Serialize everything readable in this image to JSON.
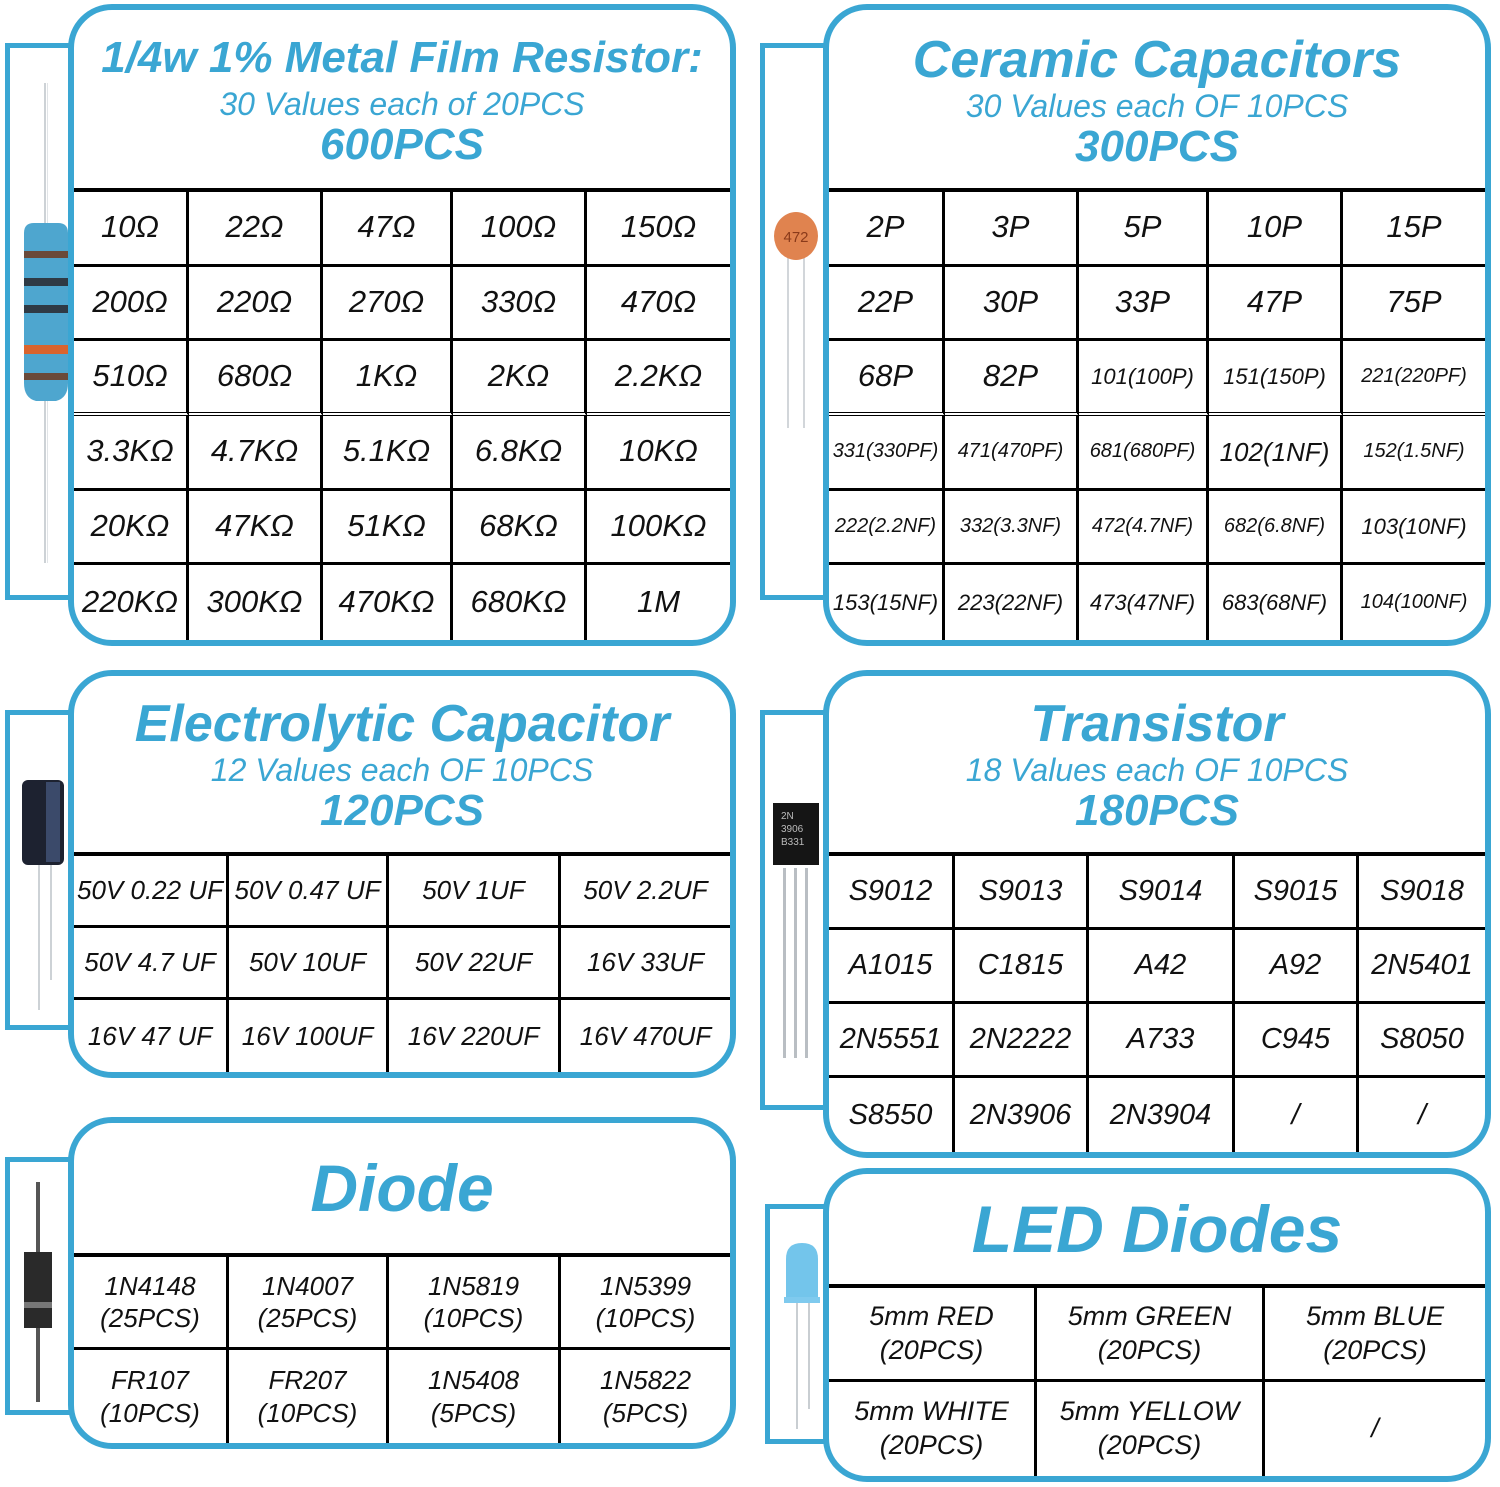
{
  "colors": {
    "accent": "#3aa6d3",
    "text": "#111111",
    "grid": "#000000"
  },
  "resistor": {
    "icon": "resistor-icon",
    "title": "1/4w 1% Metal Film Resistor:",
    "subtitle": "30 Values each of 20PCS",
    "total": "600PCS",
    "rows": [
      [
        "10Ω",
        "22Ω",
        "47Ω",
        "100Ω",
        "150Ω"
      ],
      [
        "200Ω",
        "220Ω",
        "270Ω",
        "330Ω",
        "470Ω"
      ],
      [
        "510Ω",
        "680Ω",
        "1KΩ",
        "2KΩ",
        "2.2KΩ"
      ],
      [
        "3.3KΩ",
        "4.7KΩ",
        "5.1KΩ",
        "6.8KΩ",
        "10KΩ"
      ],
      [
        "20KΩ",
        "47KΩ",
        "51KΩ",
        "68KΩ",
        "100KΩ"
      ],
      [
        "220KΩ",
        "300KΩ",
        "470KΩ",
        "680KΩ",
        "1M"
      ]
    ]
  },
  "ceramic": {
    "icon": "ceramic-capacitor-icon",
    "icon_label": "472",
    "title": "Ceramic Capacitors",
    "subtitle": "30 Values each OF 10PCS",
    "total": "300PCS",
    "rows": [
      [
        "2P",
        "3P",
        "5P",
        "10P",
        "15P"
      ],
      [
        "22P",
        "30P",
        "33P",
        "47P",
        "75P"
      ],
      [
        "68P",
        "82P",
        "101(100P)",
        "151(150P)",
        "221(220PF)"
      ],
      [
        "331(330PF)",
        "471(470PF)",
        "681(680PF)",
        "102(1NF)",
        "152(1.5NF)"
      ],
      [
        "222(2.2NF)",
        "332(3.3NF)",
        "472(4.7NF)",
        "682(6.8NF)",
        "103(10NF)"
      ],
      [
        "153(15NF)",
        "223(22NF)",
        "473(47NF)",
        "683(68NF)",
        "104(100NF)"
      ]
    ]
  },
  "electrolytic": {
    "icon": "electrolytic-capacitor-icon",
    "title": "Electrolytic Capacitor",
    "subtitle": "12 Values each OF 10PCS",
    "total": "120PCS",
    "rows": [
      [
        "50V 0.22 UF",
        "50V 0.47 UF",
        "50V 1UF",
        "50V  2.2UF"
      ],
      [
        "50V 4.7 UF",
        "50V 10UF",
        "50V 22UF",
        "16V  33UF"
      ],
      [
        "16V 47 UF",
        "16V 100UF",
        "16V 220UF",
        "16V  470UF"
      ]
    ]
  },
  "transistor": {
    "icon": "transistor-icon",
    "icon_label": "2N\n3906\nB331",
    "title": "Transistor",
    "subtitle": "18 Values each OF 10PCS",
    "total": "180PCS",
    "rows": [
      [
        "S9012",
        "S9013",
        "S9014",
        "S9015",
        "S9018"
      ],
      [
        "A1015",
        "C1815",
        "A42",
        "A92",
        "2N5401"
      ],
      [
        "2N5551",
        "2N2222",
        "A733",
        "C945",
        "S8050"
      ],
      [
        "S8550",
        "2N3906",
        "2N3904",
        "/",
        "/"
      ]
    ]
  },
  "diode": {
    "icon": "diode-icon",
    "title": "Diode",
    "rows": [
      [
        "1N4148\n(25PCS)",
        "1N4007\n(25PCS)",
        "1N5819\n(10PCS)",
        "1N5399\n(10PCS)"
      ],
      [
        "FR107\n(10PCS)",
        "FR207\n(10PCS)",
        "1N5408\n(5PCS)",
        "1N5822\n(5PCS)"
      ]
    ]
  },
  "led": {
    "icon": "led-icon",
    "title": "LED Diodes",
    "rows": [
      [
        "5mm RED\n(20PCS)",
        "5mm GREEN\n(20PCS)",
        "5mm BLUE\n(20PCS)"
      ],
      [
        "5mm WHITE\n(20PCS)",
        "5mm YELLOW\n(20PCS)",
        "/"
      ]
    ]
  }
}
